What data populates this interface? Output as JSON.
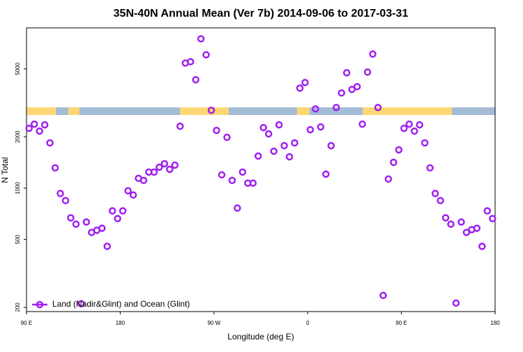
{
  "chart_data": {
    "type": "scatter",
    "title": "35N-40N Annual Mean (Ver 7b)   2014-09-06 to 2017-03-31",
    "xlabel": "Longitude (deg E)",
    "ylabel": "N Total",
    "x": [
      92.5,
      97.5,
      102.5,
      107.5,
      112.5,
      117.5,
      122.5,
      127.5,
      132.5,
      137.5,
      142.5,
      147.5,
      152.5,
      157.5,
      162.5,
      167.5,
      172.5,
      177.5,
      182.5,
      187.5,
      192.5,
      197.5,
      202.5,
      207.5,
      212.5,
      217.5,
      222.5,
      227.5,
      232.5,
      237.5,
      242.5,
      247.5,
      252.5,
      257.5,
      262.5,
      267.5,
      272.5,
      277.5,
      282.5,
      287.5,
      292.5,
      297.5,
      302.5,
      307.5,
      312.5,
      317.5,
      322.5,
      327.5,
      332.5,
      337.5,
      342.5,
      347.5,
      352.5,
      357.5,
      362.5,
      367.5,
      372.5,
      377.5,
      382.5,
      387.5,
      392.5,
      397.5,
      402.5,
      407.5,
      412.5,
      417.5,
      422.5,
      427.5,
      432.5,
      437.5,
      442.5,
      447.5,
      452.5,
      457.5,
      462.5,
      467.5,
      472.5,
      477.5,
      482.5,
      487.5,
      492.5,
      497.5,
      502.5,
      507.5,
      512.5,
      517.5,
      522.5,
      527.5,
      532.5,
      537.5
    ],
    "series": [
      {
        "name": "Land (Nadir&Glint) and Ocean (Glint)",
        "color": "#a020f0",
        "values": [
          2242,
          2372,
          2160,
          2350,
          1842,
          1315,
          930,
          846,
          670,
          615,
          210,
          633,
          550,
          566,
          582,
          456,
          736,
          663,
          736,
          965,
          912,
          1142,
          1110,
          1242,
          1242,
          1327,
          1391,
          1290,
          1365,
          2306,
          5408,
          5510,
          4320,
          7506,
          6052,
          2860,
          2180,
          1197,
          1985,
          1110,
          764,
          1242,
          1070,
          1070,
          1542,
          2264,
          2080,
          1646,
          2350,
          1774,
          1527,
          1842,
          3860,
          4160,
          2200,
          2915,
          2285,
          1208,
          1774,
          2970,
          3615,
          4745,
          3790,
          3935,
          2372,
          4790,
          6110,
          2970,
          235,
          1131,
          1417,
          1677,
          2242,
          2372,
          2160,
          2350,
          1842,
          1315,
          930,
          846,
          670,
          615,
          212,
          633,
          550,
          571,
          582,
          456,
          736,
          663
        ]
      }
    ],
    "xlim": [
      90,
      540
    ],
    "xticks": [
      {
        "value": 90,
        "label": "90 E"
      },
      180,
      {
        "value": 270,
        "label": "90 W"
      },
      {
        "value": 360,
        "label": "0"
      },
      {
        "value": 450,
        "label": "90 E"
      },
      {
        "value": 540,
        "label": "180"
      }
    ],
    "ylim": [
      189,
      8700
    ],
    "yticks": [
      200,
      500,
      1000,
      2000,
      5000
    ],
    "log_y": true,
    "legend": "lower left"
  }
}
